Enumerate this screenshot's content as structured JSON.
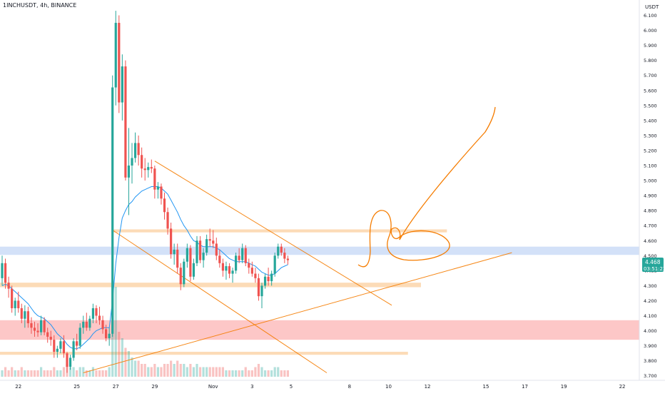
{
  "header": {
    "symbol": "1INCHUSDT",
    "interval": "4h",
    "exchange": "BINANCE",
    "separator": ", "
  },
  "price_axis": {
    "currency": "USDT"
  },
  "last_price": {
    "value": "4.468",
    "countdown": "03:51:22",
    "color": "#26a69a"
  },
  "colors": {
    "up": "#26a69a",
    "down": "#ef5350",
    "ma": "#2196f3",
    "drawing": "#f57c00",
    "zone_orange": "#fbd5aa",
    "zone_blue": "#cbdcf7",
    "zone_red": "#fdbdbd"
  },
  "chart_data": {
    "type": "candlestick",
    "symbol": "1INCHUSDT",
    "interval": "4h",
    "exchange": "BINANCE",
    "y_range": [
      3.7,
      6.15
    ],
    "y_ticks": [
      "3.700",
      "3.800",
      "3.900",
      "4.000",
      "4.100",
      "4.200",
      "4.300",
      "4.400",
      "4.500",
      "4.600",
      "4.700",
      "4.800",
      "4.900",
      "5.000",
      "5.100",
      "5.200",
      "5.300",
      "5.400",
      "5.500",
      "5.600",
      "5.700",
      "5.800",
      "5.900",
      "6.000",
      "6.100"
    ],
    "x_ticks": [
      {
        "label": "22",
        "bar": 5
      },
      {
        "label": "25",
        "bar": 23
      },
      {
        "label": "27",
        "bar": 35
      },
      {
        "label": "29",
        "bar": 47
      },
      {
        "label": "Nov",
        "bar": 65
      },
      {
        "label": "3",
        "bar": 77
      },
      {
        "label": "5",
        "bar": 89
      },
      {
        "label": "8",
        "bar": 107
      },
      {
        "label": "10",
        "bar": 119
      },
      {
        "label": "12",
        "bar": 131
      },
      {
        "label": "15",
        "bar": 149
      },
      {
        "label": "17",
        "bar": 161
      },
      {
        "label": "19",
        "bar": 173
      },
      {
        "label": "22",
        "bar": 191
      }
    ],
    "candles": [
      [
        4.35,
        4.5,
        4.3,
        4.45
      ],
      [
        4.45,
        4.48,
        4.28,
        4.32
      ],
      [
        4.32,
        4.36,
        4.22,
        4.28
      ],
      [
        4.28,
        4.3,
        4.12,
        4.15
      ],
      [
        4.15,
        4.22,
        4.1,
        4.2
      ],
      [
        4.2,
        4.26,
        4.12,
        4.15
      ],
      [
        4.15,
        4.18,
        4.05,
        4.08
      ],
      [
        4.08,
        4.17,
        4.02,
        4.13
      ],
      [
        4.13,
        4.16,
        4.02,
        4.05
      ],
      [
        4.05,
        4.09,
        3.98,
        4.02
      ],
      [
        4.02,
        4.06,
        3.96,
        4.0
      ],
      [
        4.0,
        4.05,
        3.96,
        3.99
      ],
      [
        3.99,
        4.1,
        3.97,
        4.07
      ],
      [
        4.07,
        4.09,
        3.97,
        3.99
      ],
      [
        3.99,
        4.02,
        3.92,
        3.96
      ],
      [
        3.96,
        4.0,
        3.9,
        3.94
      ],
      [
        3.94,
        3.97,
        3.82,
        3.86
      ],
      [
        3.86,
        3.9,
        3.82,
        3.88
      ],
      [
        3.88,
        3.95,
        3.85,
        3.93
      ],
      [
        3.93,
        3.97,
        3.82,
        3.85
      ],
      [
        3.85,
        3.86,
        3.72,
        3.76
      ],
      [
        3.76,
        3.84,
        3.74,
        3.82
      ],
      [
        3.82,
        3.95,
        3.8,
        3.93
      ],
      [
        3.93,
        3.98,
        3.87,
        3.9
      ],
      [
        3.9,
        4.05,
        3.88,
        4.02
      ],
      [
        4.02,
        4.1,
        3.98,
        4.06
      ],
      [
        4.06,
        4.12,
        4.0,
        4.02
      ],
      [
        4.02,
        4.1,
        4.0,
        4.08
      ],
      [
        4.08,
        4.18,
        4.05,
        4.15
      ],
      [
        4.15,
        4.17,
        4.05,
        4.1
      ],
      [
        4.1,
        4.16,
        4.04,
        4.07
      ],
      [
        4.07,
        4.1,
        3.98,
        4.01
      ],
      [
        4.01,
        4.04,
        3.93,
        3.95
      ],
      [
        3.95,
        4.02,
        3.9,
        3.98
      ],
      [
        3.98,
        5.7,
        3.96,
        5.62
      ],
      [
        5.62,
        6.13,
        5.5,
        6.05
      ],
      [
        6.05,
        6.1,
        5.45,
        5.52
      ],
      [
        5.52,
        5.84,
        5.4,
        5.76
      ],
      [
        5.76,
        5.8,
        5.0,
        5.02
      ],
      [
        5.02,
        5.35,
        4.77,
        5.1
      ],
      [
        5.1,
        5.25,
        4.98,
        5.15
      ],
      [
        5.15,
        5.32,
        5.12,
        5.25
      ],
      [
        5.25,
        5.3,
        5.1,
        5.17
      ],
      [
        5.17,
        5.22,
        5.02,
        5.08
      ],
      [
        5.08,
        5.15,
        5.0,
        5.07
      ],
      [
        5.07,
        5.12,
        5.02,
        5.09
      ],
      [
        5.09,
        5.14,
        5.05,
        5.08
      ],
      [
        5.08,
        5.1,
        4.88,
        4.94
      ],
      [
        4.94,
        4.99,
        4.88,
        4.96
      ],
      [
        4.96,
        4.98,
        4.84,
        4.88
      ],
      [
        4.88,
        4.92,
        4.74,
        4.79
      ],
      [
        4.79,
        4.82,
        4.64,
        4.68
      ],
      [
        4.68,
        4.72,
        4.48,
        4.51
      ],
      [
        4.51,
        4.58,
        4.44,
        4.54
      ],
      [
        4.54,
        4.58,
        4.38,
        4.42
      ],
      [
        4.42,
        4.45,
        4.27,
        4.31
      ],
      [
        4.31,
        4.48,
        4.29,
        4.46
      ],
      [
        4.46,
        4.58,
        4.42,
        4.55
      ],
      [
        4.55,
        4.57,
        4.33,
        4.36
      ],
      [
        4.36,
        4.48,
        4.34,
        4.45
      ],
      [
        4.45,
        4.63,
        4.43,
        4.6
      ],
      [
        4.6,
        4.63,
        4.45,
        4.47
      ],
      [
        4.47,
        4.55,
        4.42,
        4.52
      ],
      [
        4.52,
        4.64,
        4.5,
        4.61
      ],
      [
        4.61,
        4.68,
        4.56,
        4.6
      ],
      [
        4.6,
        4.67,
        4.55,
        4.58
      ],
      [
        4.58,
        4.62,
        4.47,
        4.5
      ],
      [
        4.5,
        4.54,
        4.42,
        4.45
      ],
      [
        4.45,
        4.48,
        4.36,
        4.4
      ],
      [
        4.4,
        4.46,
        4.34,
        4.43
      ],
      [
        4.43,
        4.45,
        4.35,
        4.38
      ],
      [
        4.38,
        4.42,
        4.32,
        4.4
      ],
      [
        4.4,
        4.52,
        4.38,
        4.5
      ],
      [
        4.5,
        4.55,
        4.45,
        4.47
      ],
      [
        4.47,
        4.58,
        4.45,
        4.55
      ],
      [
        4.55,
        4.57,
        4.43,
        4.45
      ],
      [
        4.45,
        4.48,
        4.38,
        4.42
      ],
      [
        4.42,
        4.46,
        4.36,
        4.38
      ],
      [
        4.38,
        4.42,
        4.32,
        4.35
      ],
      [
        4.35,
        4.38,
        4.2,
        4.23
      ],
      [
        4.23,
        4.32,
        4.15,
        4.3
      ],
      [
        4.3,
        4.38,
        4.28,
        4.36
      ],
      [
        4.36,
        4.42,
        4.3,
        4.33
      ],
      [
        4.33,
        4.4,
        4.3,
        4.38
      ],
      [
        4.38,
        4.52,
        4.36,
        4.5
      ],
      [
        4.5,
        4.58,
        4.48,
        4.56
      ],
      [
        4.56,
        4.58,
        4.5,
        4.52
      ],
      [
        4.52,
        4.55,
        4.45,
        4.48
      ],
      [
        4.48,
        4.5,
        4.44,
        4.47
      ]
    ],
    "volumes": [
      2,
      3,
      2,
      3,
      2,
      2,
      3,
      2,
      2,
      2,
      2,
      2,
      3,
      2,
      2,
      2,
      3,
      2,
      2,
      3,
      4,
      3,
      3,
      2,
      3,
      3,
      2,
      2,
      3,
      2,
      2,
      2,
      2,
      3,
      30,
      28,
      14,
      12,
      9,
      8,
      6,
      5,
      5,
      4,
      4,
      3,
      3,
      4,
      3,
      3,
      4,
      4,
      5,
      4,
      5,
      4,
      4,
      3,
      4,
      3,
      4,
      3,
      3,
      3,
      3,
      3,
      3,
      3,
      3,
      2,
      2,
      2,
      2,
      2,
      2,
      3,
      2,
      2,
      3,
      4,
      3,
      2,
      2,
      2,
      3,
      3,
      2,
      2,
      2
    ],
    "moving_average": [
      4.3,
      4.31,
      4.3,
      4.28,
      4.26,
      4.24,
      4.22,
      4.2,
      4.18,
      4.15,
      4.12,
      4.1,
      4.09,
      4.08,
      4.06,
      4.04,
      4.01,
      3.98,
      3.96,
      3.94,
      3.91,
      3.89,
      3.88,
      3.88,
      3.89,
      3.91,
      3.93,
      3.95,
      3.98,
      4.0,
      4.01,
      4.02,
      4.02,
      4.02,
      4.2,
      4.45,
      4.62,
      4.75,
      4.8,
      4.84,
      4.86,
      4.89,
      4.91,
      4.93,
      4.94,
      4.95,
      4.96,
      4.96,
      4.96,
      4.95,
      4.93,
      4.91,
      4.87,
      4.83,
      4.79,
      4.74,
      4.7,
      4.67,
      4.63,
      4.6,
      4.59,
      4.57,
      4.56,
      4.56,
      4.56,
      4.56,
      4.55,
      4.54,
      4.52,
      4.5,
      4.48,
      4.47,
      4.46,
      4.46,
      4.46,
      4.46,
      4.45,
      4.44,
      4.43,
      4.41,
      4.39,
      4.38,
      4.37,
      4.37,
      4.38,
      4.4,
      4.42,
      4.43,
      4.44
    ],
    "zones": [
      {
        "color": "orange",
        "from": 4.655,
        "to": 4.675,
        "bar_start": 34,
        "bar_end": 137
      },
      {
        "color": "blue",
        "from": 4.505,
        "to": 4.56,
        "bar_start": -2,
        "bar_end": 201
      },
      {
        "color": "orange",
        "from": 4.29,
        "to": 4.32,
        "bar_start": -2,
        "bar_end": 129
      },
      {
        "color": "red",
        "from": 3.94,
        "to": 4.07,
        "bar_start": -2,
        "bar_end": 201
      },
      {
        "color": "orange",
        "from": 3.84,
        "to": 3.86,
        "bar_start": -2,
        "bar_end": 125
      }
    ],
    "trend_lines": [
      {
        "from": [
          47,
          5.13
        ],
        "to": [
          120,
          4.17
        ]
      },
      {
        "from": [
          34,
          4.67
        ],
        "to": [
          100,
          3.72
        ]
      },
      {
        "from": [
          25,
          3.72
        ],
        "to": [
          157,
          4.52
        ]
      }
    ]
  }
}
